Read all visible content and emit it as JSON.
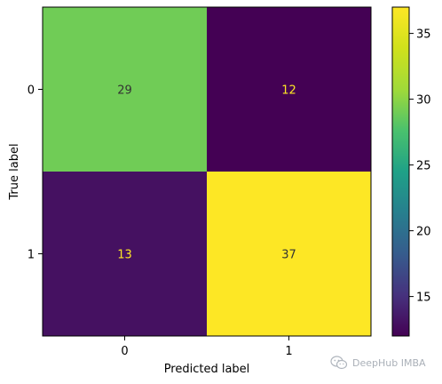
{
  "chart_data": {
    "type": "heatmap",
    "title": "",
    "xlabel": "Predicted label",
    "ylabel": "True label",
    "x_tick_labels": [
      "0",
      "1"
    ],
    "y_tick_labels": [
      "0",
      "1"
    ],
    "matrix": [
      [
        29,
        12
      ],
      [
        13,
        37
      ]
    ],
    "colormap": "viridis",
    "colorbar": {
      "range": [
        12,
        37
      ],
      "ticks": [
        15,
        20,
        25,
        30,
        35
      ]
    }
  },
  "watermark": {
    "text": "DeepHub IMBA",
    "icon": "wechat-icon"
  }
}
